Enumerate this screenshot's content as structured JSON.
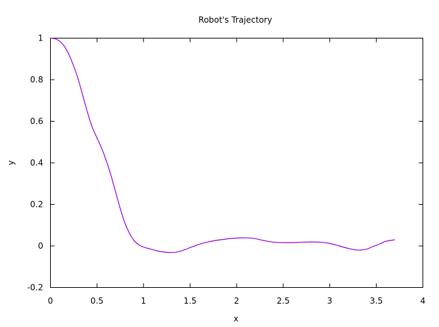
{
  "chart_data": {
    "type": "line",
    "title": "Robot's Trajectory",
    "xlabel": "x",
    "ylabel": "y",
    "xlim": [
      0,
      4
    ],
    "ylim": [
      -0.2,
      1
    ],
    "xticks": [
      0,
      0.5,
      1,
      1.5,
      2,
      2.5,
      3,
      3.5,
      4
    ],
    "xtick_labels": [
      "0",
      "0.5",
      "1",
      "1.5",
      "2",
      "2.5",
      "3",
      "3.5",
      "4"
    ],
    "yticks": [
      -0.2,
      0,
      0.2,
      0.4,
      0.6,
      0.8,
      1
    ],
    "ytick_labels": [
      "-0.2",
      "0",
      "0.2",
      "0.4",
      "0.6",
      "0.8",
      "1"
    ],
    "grid": false,
    "series": [
      {
        "color": "#9400d3",
        "x": [
          0,
          0.05,
          0.1,
          0.15,
          0.2,
          0.25,
          0.3,
          0.35,
          0.4,
          0.45,
          0.5,
          0.55,
          0.6,
          0.65,
          0.7,
          0.75,
          0.8,
          0.85,
          0.9,
          0.95,
          1.0,
          1.05,
          1.1,
          1.15,
          1.2,
          1.25,
          1.3,
          1.35,
          1.4,
          1.45,
          1.5,
          1.55,
          1.6,
          1.7,
          1.8,
          1.9,
          2.0,
          2.1,
          2.2,
          2.3,
          2.4,
          2.5,
          2.6,
          2.7,
          2.8,
          2.9,
          3.0,
          3.1,
          3.2,
          3.3,
          3.4,
          3.45,
          3.5,
          3.55,
          3.6,
          3.7
        ],
        "y": [
          1.0,
          0.997,
          0.985,
          0.96,
          0.92,
          0.865,
          0.8,
          0.72,
          0.64,
          0.57,
          0.52,
          0.47,
          0.41,
          0.34,
          0.26,
          0.18,
          0.11,
          0.06,
          0.025,
          0.005,
          -0.005,
          -0.012,
          -0.018,
          -0.024,
          -0.028,
          -0.031,
          -0.032,
          -0.03,
          -0.025,
          -0.017,
          -0.008,
          0.0,
          0.008,
          0.02,
          0.028,
          0.034,
          0.038,
          0.039,
          0.035,
          0.025,
          0.018,
          0.016,
          0.016,
          0.018,
          0.019,
          0.018,
          0.012,
          0.0,
          -0.012,
          -0.02,
          -0.015,
          -0.005,
          0.003,
          0.012,
          0.022,
          0.03
        ]
      }
    ]
  }
}
